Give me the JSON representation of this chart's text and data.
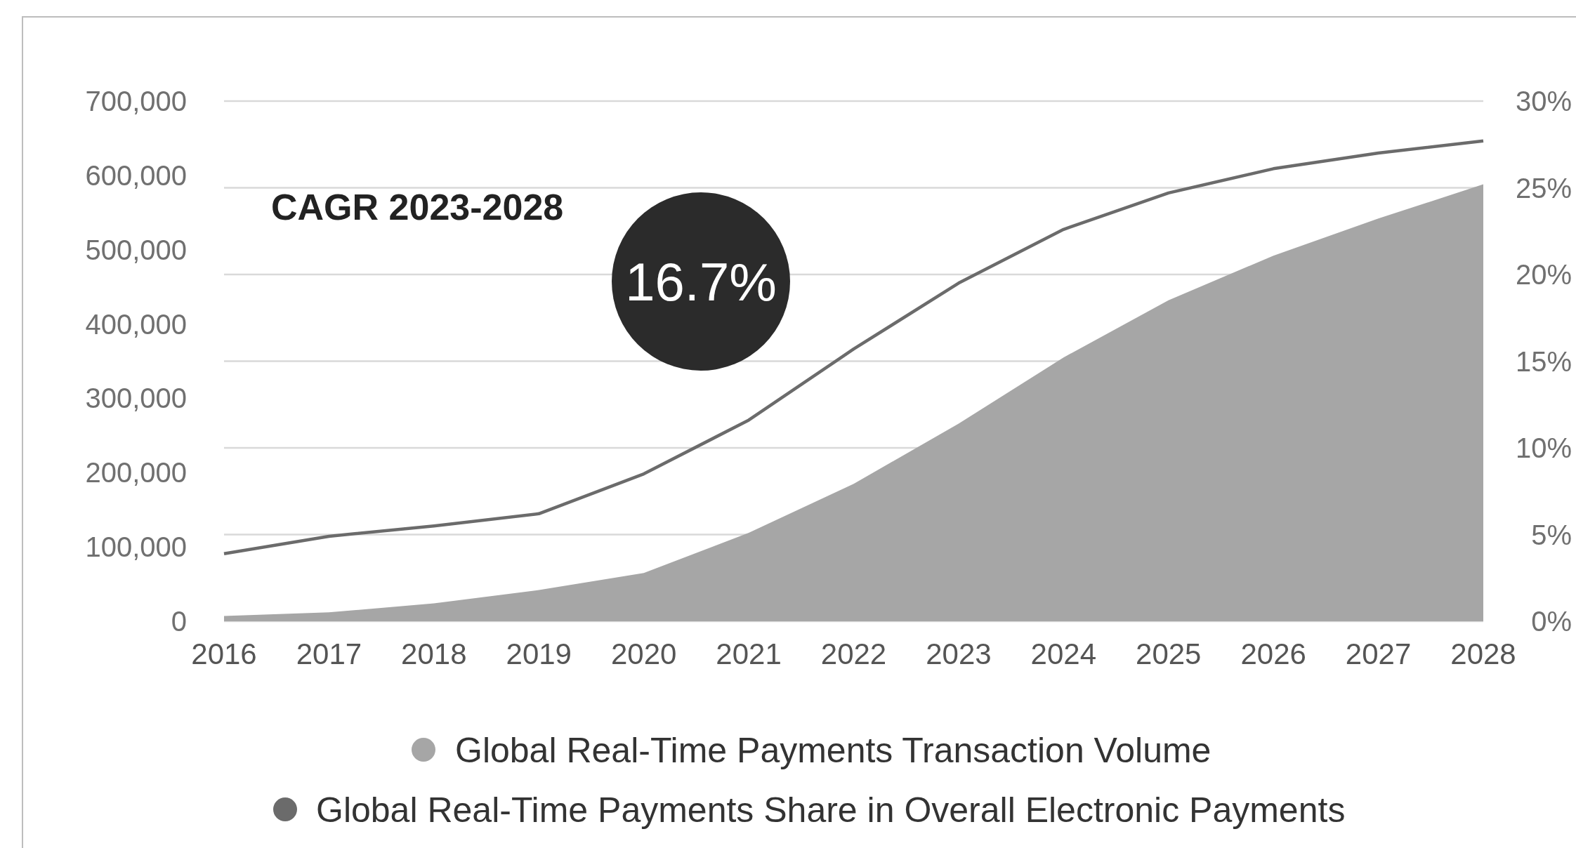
{
  "chart_data": {
    "type": "area",
    "x": [
      2016,
      2017,
      2018,
      2019,
      2020,
      2021,
      2022,
      2023,
      2024,
      2025,
      2026,
      2027,
      2028
    ],
    "series": [
      {
        "name": "Global Real-Time Payments Transaction Volume",
        "color": "#a6a6a6",
        "values": [
          7000,
          12000,
          24000,
          42000,
          65000,
          119000,
          185000,
          266000,
          355000,
          432000,
          492000,
          542000,
          588000
        ]
      },
      {
        "name": "Global Real-Time Payments Share in Overall Electronic Payments",
        "type": "line",
        "axis": "y2",
        "color": "#6b6b6b",
        "values": [
          3.9,
          4.9,
          5.5,
          6.2,
          8.5,
          11.6,
          15.7,
          19.5,
          22.6,
          24.7,
          26.1,
          27.0,
          27.7
        ]
      }
    ],
    "xlim": [
      2016,
      2028
    ],
    "xticks": [
      2016,
      2017,
      2018,
      2019,
      2020,
      2021,
      2022,
      2023,
      2024,
      2025,
      2026,
      2027,
      2028
    ],
    "ylim": [
      0,
      700000
    ],
    "yticks": [
      0,
      {
        "value": 100000,
        "label": "100,000"
      },
      {
        "value": 200000,
        "label": "200,000"
      },
      {
        "value": 300000,
        "label": "300,000"
      },
      {
        "value": 400000,
        "label": "400,000"
      },
      {
        "value": 500000,
        "label": "500,000"
      },
      {
        "value": 600000,
        "label": "600,000"
      },
      {
        "value": 700000,
        "label": "700,000"
      }
    ],
    "y2lim": [
      0,
      30
    ],
    "y2ticks": [
      {
        "value": 0,
        "label": "0%"
      },
      {
        "value": 5,
        "label": "5%"
      },
      {
        "value": 10,
        "label": "10%"
      },
      {
        "value": 15,
        "label": "15%"
      },
      {
        "value": 20,
        "label": "20%"
      },
      {
        "value": 25,
        "label": "25%"
      },
      {
        "value": 30,
        "label": "30%"
      }
    ],
    "grid": "y2",
    "legend": "bottom",
    "marker": "none",
    "annotations": [
      "CAGR 2023-2028",
      "16.7%"
    ]
  }
}
